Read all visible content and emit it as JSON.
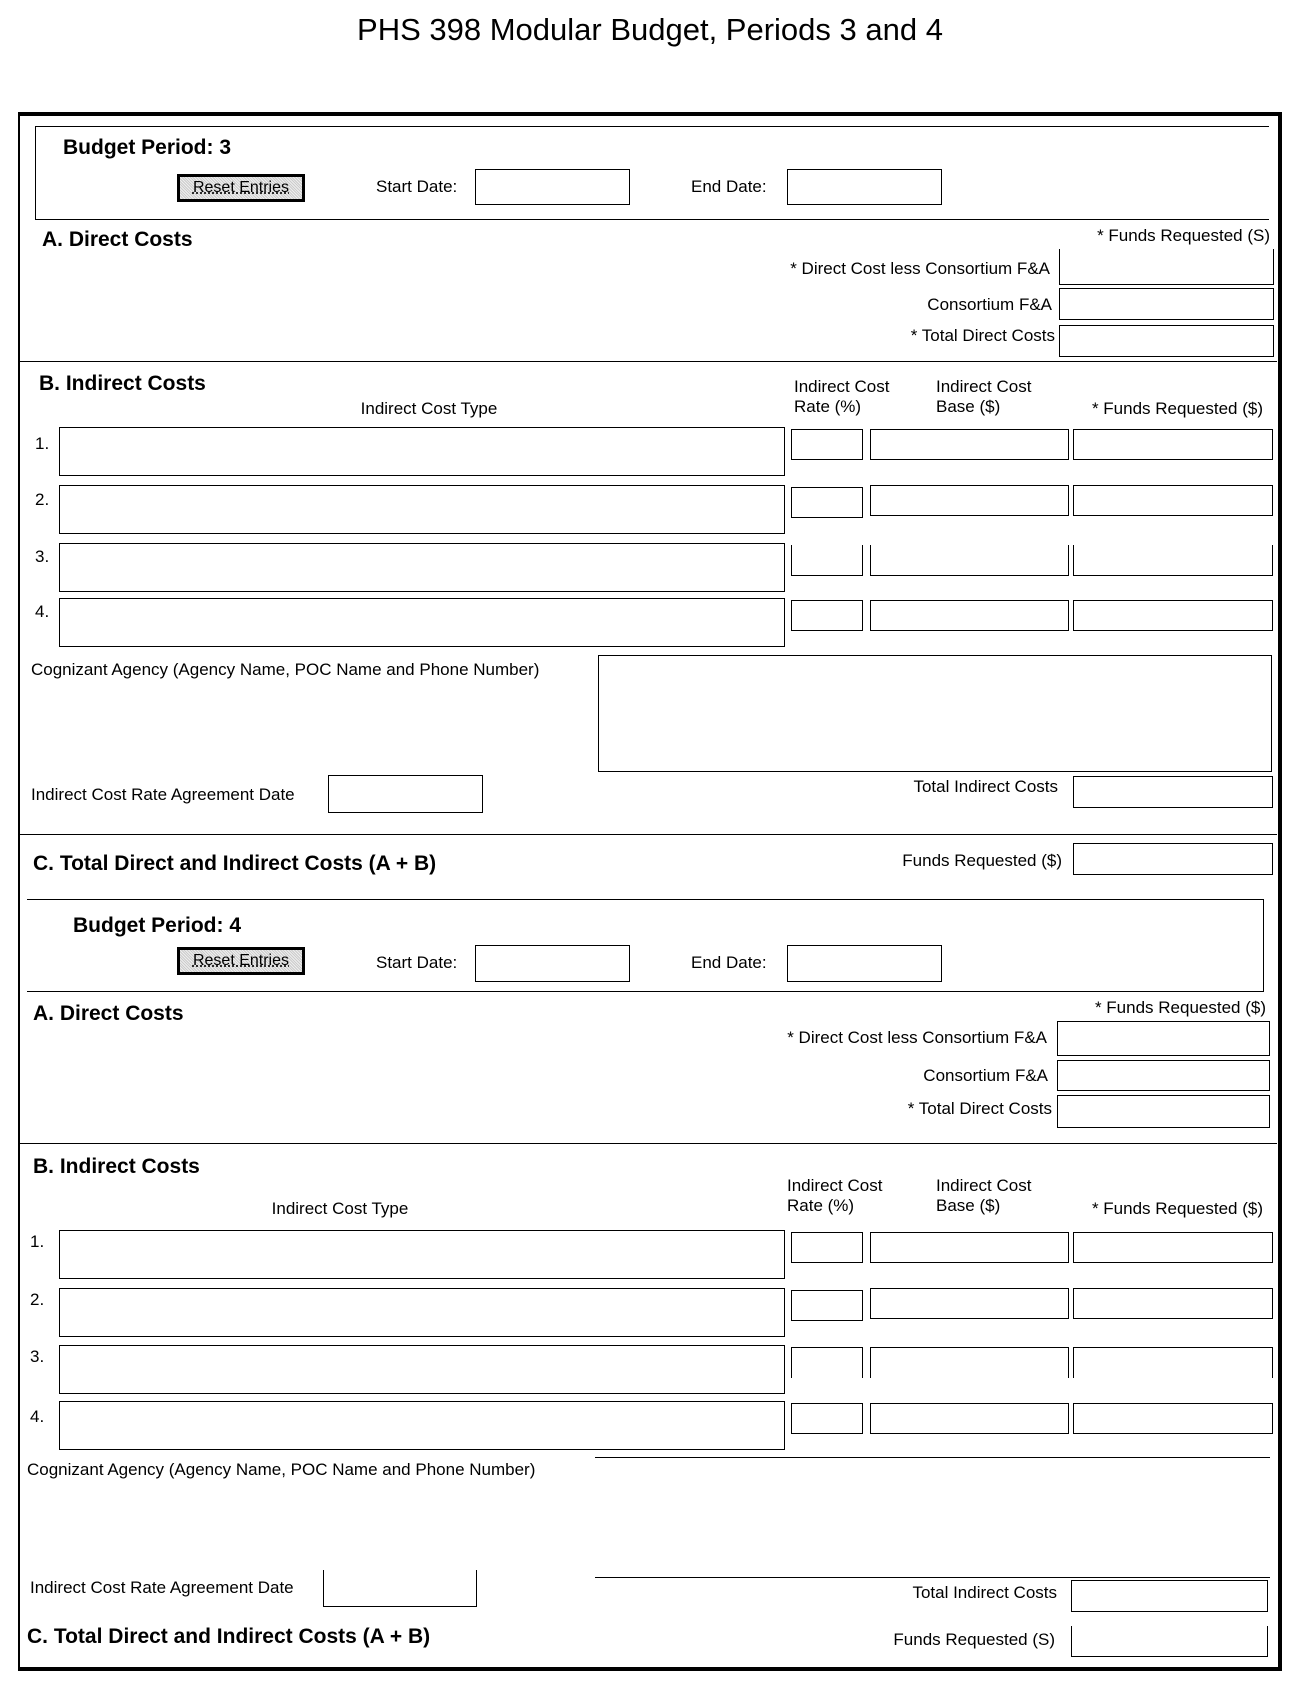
{
  "title": "PHS 398 Modular Budget, Periods 3 and 4",
  "periods": [
    {
      "budget_period_label": "Budget Period: 3",
      "reset_label": "Reset Entries",
      "start_date_label": "Start Date:",
      "end_date_label": "End Date:",
      "direct": {
        "heading": "A. Direct Costs",
        "funds_header": "* Funds Requested (S)",
        "less_consortium": "* Direct Cost less Consortium F&A",
        "consortium": "Consortium F&A",
        "total_direct": "* Total Direct Costs"
      },
      "indirect": {
        "heading": "B. Indirect Costs",
        "type_header": "Indirect Cost Type",
        "rate_header_1": "Indirect Cost",
        "rate_header_2": "Rate (%)",
        "base_header_1": "Indirect Cost",
        "base_header_2": "Base ($)",
        "funds_header": "* Funds Requested ($)",
        "rows": [
          "1.",
          "2.",
          "3.",
          "4."
        ],
        "cognizant": "Cognizant Agency (Agency Name, POC Name and Phone Number)",
        "agreement_date": "Indirect Cost Rate Agreement Date",
        "total_indirect": "Total Indirect Costs"
      },
      "total": {
        "heading": "C. Total Direct and Indirect Costs (A + B)",
        "funds_label": "Funds Requested ($)"
      }
    },
    {
      "budget_period_label": "Budget Period:  4",
      "reset_label": "Reset Entries",
      "start_date_label": "Start Date:",
      "end_date_label": "End Date:",
      "direct": {
        "heading": "A. Direct Costs",
        "funds_header": "* Funds Requested ($)",
        "less_consortium": "* Direct Cost less Consortium F&A",
        "consortium": "Consortium F&A",
        "total_direct": "* Total Direct Costs"
      },
      "indirect": {
        "heading": "B. Indirect Costs",
        "type_header": "Indirect Cost Type",
        "rate_header_1": "Indirect Cost",
        "rate_header_2": "Rate (%)",
        "base_header_1": "Indirect Cost",
        "base_header_2": "Base ($)",
        "funds_header": "* Funds Requested ($)",
        "rows": [
          "1.",
          "2.",
          "3.",
          "4."
        ],
        "cognizant": "Cognizant Agency (Agency Name, POC Name and Phone Number)",
        "agreement_date": "Indirect Cost Rate Agreement Date",
        "total_indirect": "Total Indirect Costs"
      },
      "total": {
        "heading": "C. Total Direct and Indirect Costs (A + B)",
        "funds_label": "Funds Requested (S)"
      }
    }
  ]
}
